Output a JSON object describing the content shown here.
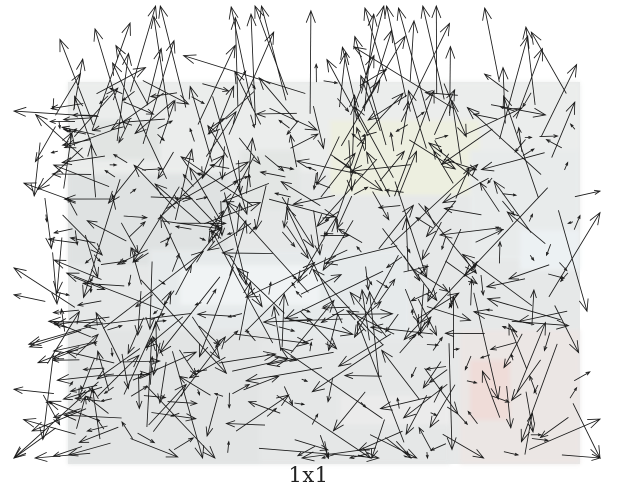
{
  "figure": {
    "caption": "1x1",
    "arrow_color": "#1a1a1a",
    "background_tint": "#e4e7e8",
    "arrow_count": 520,
    "random_seed": 7
  }
}
